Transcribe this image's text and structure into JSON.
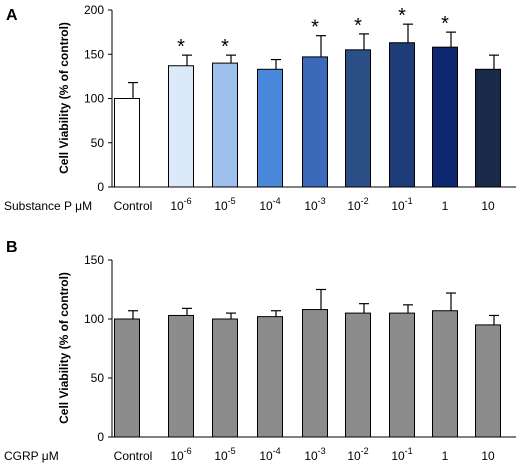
{
  "chart_data": [
    {
      "type": "bar",
      "panel_label": "A",
      "treatment_label": "Substance P μM",
      "ylabel": "Cell Viability (% of control)",
      "ylim": [
        0,
        200
      ],
      "yticks": [
        0,
        50,
        100,
        150,
        200
      ],
      "categories": [
        {
          "base": "Control",
          "exp": ""
        },
        {
          "base": "10",
          "exp": "-6"
        },
        {
          "base": "10",
          "exp": "-5"
        },
        {
          "base": "10",
          "exp": "-4"
        },
        {
          "base": "10",
          "exp": "-3"
        },
        {
          "base": "10",
          "exp": "-2"
        },
        {
          "base": "10",
          "exp": "-1"
        },
        {
          "base": "1",
          "exp": ""
        },
        {
          "base": "10",
          "exp": ""
        }
      ],
      "values": [
        100,
        137,
        140,
        133,
        147,
        155,
        163,
        158,
        133
      ],
      "errors": [
        18,
        12,
        9,
        11,
        24,
        18,
        21,
        17,
        16
      ],
      "significance": [
        "",
        "*",
        "*",
        "",
        "*",
        "*",
        "*",
        "*",
        ""
      ],
      "bar_fill_colors": [
        "#ffffff",
        "#dce9fa",
        "#9dc0ec",
        "#4a88dc",
        "#3d6ab8",
        "#2b4f86",
        "#1e3c78",
        "#0e2872",
        "#1a2a4a"
      ],
      "bar_stroke_color": "#000000"
    },
    {
      "type": "bar",
      "panel_label": "B",
      "treatment_label": "CGRP μM",
      "ylabel": "Cell Viability (% of control)",
      "ylim": [
        0,
        150
      ],
      "yticks": [
        0,
        50,
        100,
        150
      ],
      "categories": [
        {
          "base": "Control",
          "exp": ""
        },
        {
          "base": "10",
          "exp": "-6"
        },
        {
          "base": "10",
          "exp": "-5"
        },
        {
          "base": "10",
          "exp": "-4"
        },
        {
          "base": "10",
          "exp": "-3"
        },
        {
          "base": "10",
          "exp": "-2"
        },
        {
          "base": "10",
          "exp": "-1"
        },
        {
          "base": "1",
          "exp": ""
        },
        {
          "base": "10",
          "exp": ""
        }
      ],
      "values": [
        100,
        103,
        100,
        102,
        108,
        105,
        105,
        107,
        95
      ],
      "errors": [
        7,
        6,
        5,
        5,
        17,
        8,
        7,
        15,
        8
      ],
      "significance": [
        "",
        "",
        "",
        "",
        "",
        "",
        "",
        "",
        ""
      ],
      "bar_fill_colors": [
        "#8c8c8c",
        "#8c8c8c",
        "#8c8c8c",
        "#8c8c8c",
        "#8c8c8c",
        "#8c8c8c",
        "#8c8c8c",
        "#8c8c8c",
        "#8c8c8c"
      ],
      "bar_stroke_color": "#000000"
    }
  ]
}
